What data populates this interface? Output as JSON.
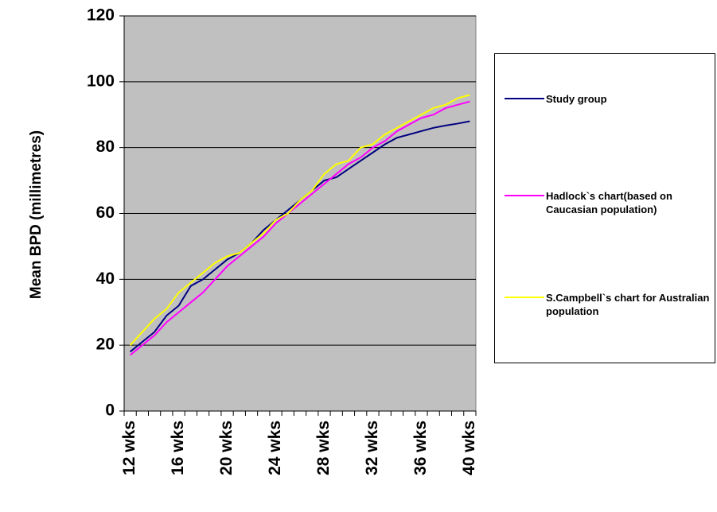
{
  "chart_data": {
    "type": "line",
    "y_label": "Mean BPD (millimetres)",
    "categories": [
      "12 wks",
      null,
      null,
      null,
      "16 wks",
      null,
      null,
      null,
      "20 wks",
      null,
      null,
      null,
      "24 wks",
      null,
      null,
      null,
      "28 wks",
      null,
      null,
      null,
      "32 wks",
      null,
      null,
      null,
      "36 wks",
      null,
      null,
      null,
      "40 wks"
    ],
    "series": [
      {
        "name": "Study group",
        "color": "#000080",
        "values": [
          18,
          21,
          24,
          29,
          32,
          38,
          40,
          43,
          46,
          48,
          51,
          55,
          58,
          61,
          64,
          67,
          70,
          71,
          73.5,
          76,
          78.5,
          81,
          83,
          84,
          85,
          86,
          86.7,
          87.3,
          88
        ]
      },
      {
        "name": "Hadlock`s chart(based on Caucasian population)",
        "color": "#ff00ff",
        "values": [
          17,
          20,
          23,
          27,
          30,
          33,
          36,
          40,
          44,
          47,
          50,
          53,
          57,
          60,
          63,
          66,
          69,
          72,
          75,
          77,
          80,
          82,
          85,
          87,
          89,
          90,
          92,
          93,
          94
        ]
      },
      {
        "name": "S.Campbell`s chart for Australian population",
        "color": "#ffff00",
        "values": [
          20,
          24,
          28,
          31,
          36,
          39,
          42,
          45,
          47,
          48,
          51,
          54,
          58,
          60,
          64,
          67,
          72,
          75,
          76,
          80,
          81,
          84,
          86,
          88,
          90,
          92,
          93,
          95,
          96
        ]
      }
    ],
    "ylim": [
      0,
      120
    ],
    "yticks": [
      0,
      20,
      40,
      60,
      80,
      100,
      120
    ],
    "grid": true,
    "legend": "right"
  }
}
